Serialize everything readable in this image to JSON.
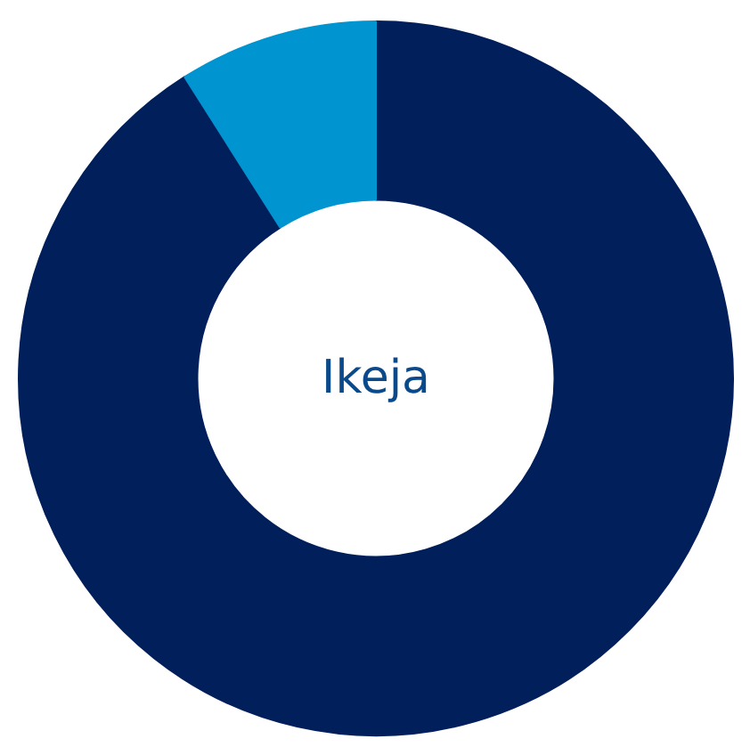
{
  "chart_data": {
    "type": "donut",
    "title": "Ikeja",
    "categories": [
      null,
      null
    ],
    "values": [
      91,
      9
    ],
    "colors": [
      "#001f5b",
      "#0094d0"
    ]
  }
}
